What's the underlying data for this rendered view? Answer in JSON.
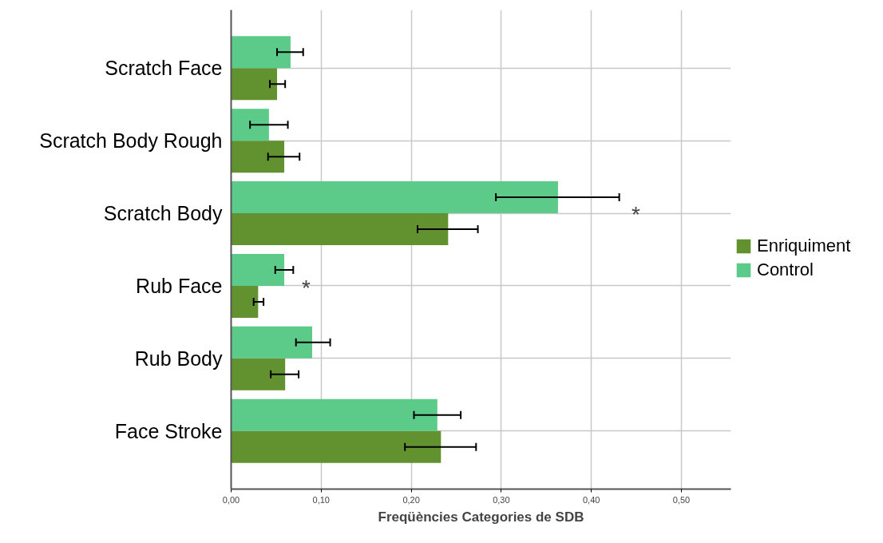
{
  "chart_data": {
    "type": "bar",
    "orientation": "horizontal",
    "xlabel": "Freqüències Categories de SDB",
    "categories": [
      "Scratch Face",
      "Scratch Body Rough",
      "Scratch Body",
      "Rub Face",
      "Rub Body",
      "Face Stroke"
    ],
    "series": [
      {
        "name": "Enriquiment",
        "color": "#62922f",
        "values": [
          0.051,
          0.059,
          0.241,
          0.03,
          0.06,
          0.233
        ],
        "errors": [
          [
            0.043,
            0.06
          ],
          [
            0.041,
            0.076
          ],
          [
            0.207,
            0.274
          ],
          [
            0.025,
            0.036
          ],
          [
            0.044,
            0.075
          ],
          [
            0.193,
            0.272
          ]
        ]
      },
      {
        "name": "Control",
        "color": "#5ccb8a",
        "values": [
          0.066,
          0.042,
          0.363,
          0.059,
          0.09,
          0.229
        ],
        "errors": [
          [
            0.051,
            0.08
          ],
          [
            0.021,
            0.063
          ],
          [
            0.294,
            0.431
          ],
          [
            0.049,
            0.069
          ],
          [
            0.072,
            0.11
          ],
          [
            0.203,
            0.255
          ]
        ]
      }
    ],
    "xlim": [
      0,
      0.555
    ],
    "xticks": [
      {
        "value": 0,
        "label": "0,00"
      },
      {
        "value": 0.1,
        "label": "0,10"
      },
      {
        "value": 0.2,
        "label": "0,20"
      },
      {
        "value": 0.3,
        "label": "0,30"
      },
      {
        "value": 0.4,
        "label": "0,40"
      },
      {
        "value": 0.5,
        "label": "0,50"
      }
    ],
    "grid": true,
    "legend": "right",
    "annotations": [
      "*",
      "*"
    ]
  }
}
